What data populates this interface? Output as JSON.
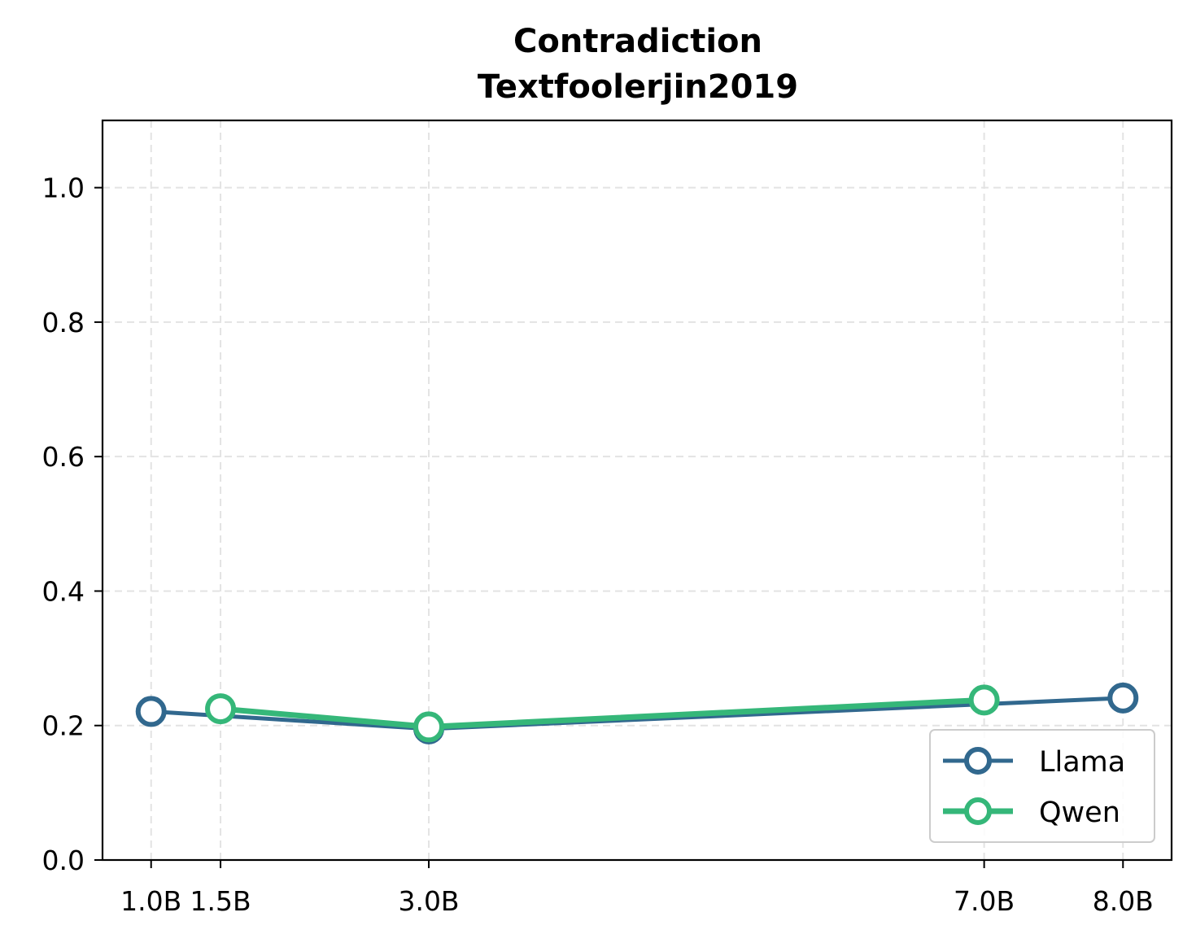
{
  "chart_data": {
    "type": "line",
    "title": "Contradiction",
    "subtitle": "Textfoolerjin2019",
    "xlabel": "",
    "ylabel": "",
    "x_ticks": [
      "1.0B",
      "1.5B",
      "3.0B",
      "7.0B",
      "8.0B"
    ],
    "y_ticks": [
      "0.0",
      "0.2",
      "0.4",
      "0.6",
      "0.8",
      "1.0"
    ],
    "xlim": [
      0.65,
      8.35
    ],
    "ylim": [
      0.0,
      1.1
    ],
    "grid": true,
    "legend_position": "lower-right",
    "series": [
      {
        "name": "Llama",
        "color": "#31688e",
        "x": [
          1.0,
          3.0,
          8.0
        ],
        "y": [
          0.221,
          0.195,
          0.241
        ]
      },
      {
        "name": "Qwen",
        "color": "#35b779",
        "x": [
          1.5,
          3.0,
          7.0
        ],
        "y": [
          0.225,
          0.198,
          0.238
        ]
      }
    ]
  }
}
